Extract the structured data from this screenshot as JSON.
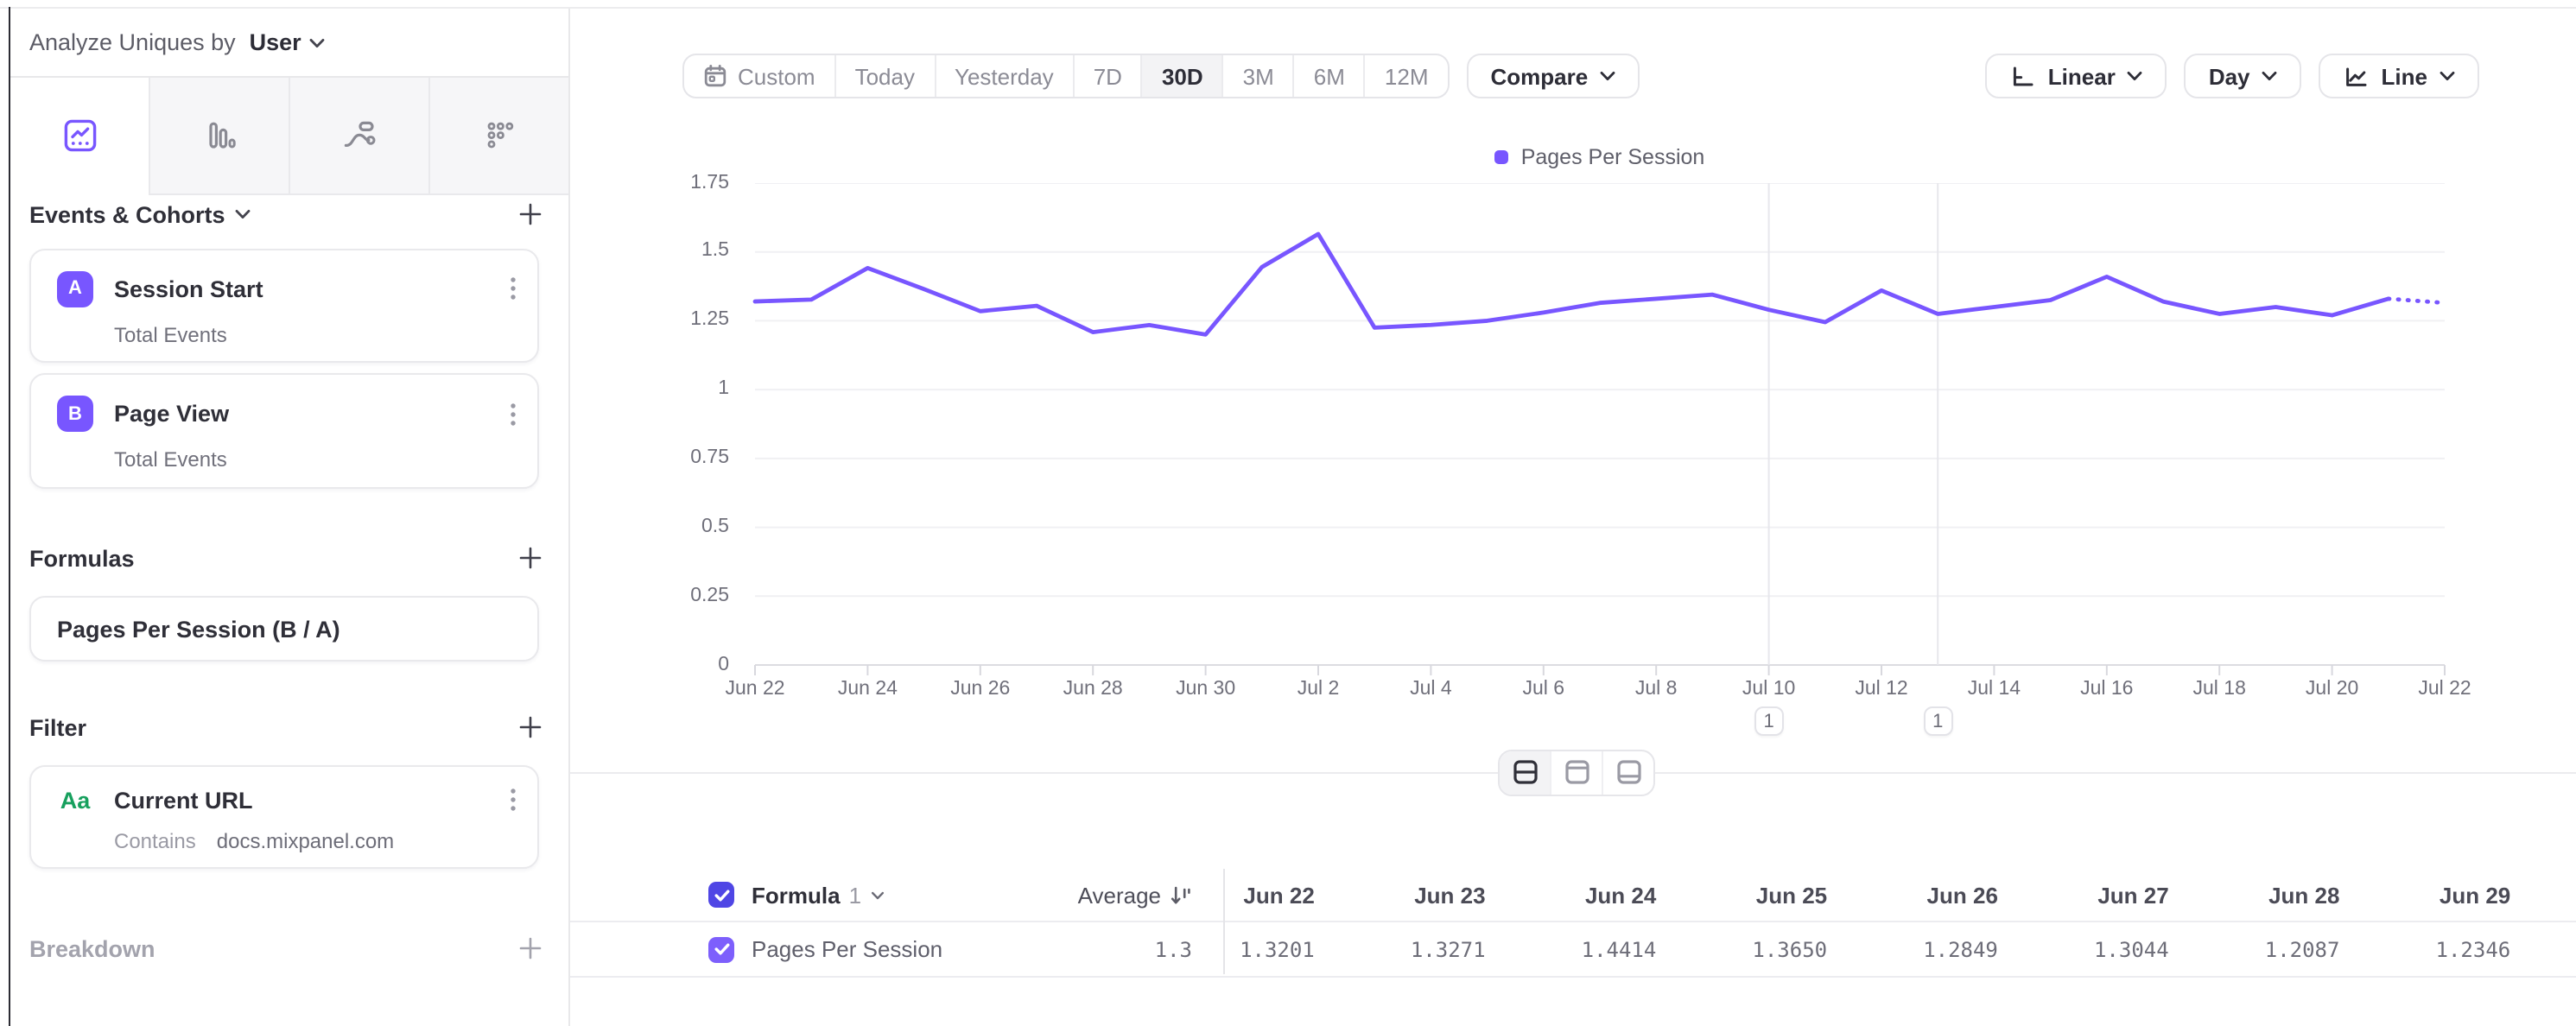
{
  "sidebar": {
    "analyze_prefix": "Analyze Uniques by",
    "analyze_value": "User",
    "tabs": [
      "insights",
      "bar",
      "flows",
      "retention"
    ],
    "events_section": {
      "title": "Events & Cohorts"
    },
    "events": [
      {
        "badge": "A",
        "title": "Session Start",
        "subtitle": "Total Events"
      },
      {
        "badge": "B",
        "title": "Page View",
        "subtitle": "Total Events"
      }
    ],
    "formulas_section": {
      "title": "Formulas"
    },
    "formulas": [
      {
        "title": "Pages Per Session (B / A)"
      }
    ],
    "filter_section": {
      "title": "Filter"
    },
    "filters": [
      {
        "badge": "Aa",
        "title": "Current URL",
        "operator": "Contains",
        "value": "docs.mixpanel.com"
      }
    ],
    "breakdown_section": {
      "title": "Breakdown"
    }
  },
  "toolbar": {
    "date_ranges": [
      "Custom",
      "Today",
      "Yesterday",
      "7D",
      "30D",
      "3M",
      "6M",
      "12M"
    ],
    "active_range": "30D",
    "compare_label": "Compare",
    "scale_label": "Linear",
    "granularity_label": "Day",
    "chart_type_label": "Line"
  },
  "chart_data": {
    "type": "line",
    "title": "",
    "legend": "Pages Per Session",
    "legend_position": "top-center",
    "grid": true,
    "ylim": [
      0,
      1.75
    ],
    "yticks": [
      0,
      0.25,
      0.5,
      0.75,
      1,
      1.25,
      1.5,
      1.75
    ],
    "x": [
      "Jun 22",
      "Jun 23",
      "Jun 24",
      "Jun 25",
      "Jun 26",
      "Jun 27",
      "Jun 28",
      "Jun 29",
      "Jun 30",
      "Jul 1",
      "Jul 2",
      "Jul 3",
      "Jul 4",
      "Jul 5",
      "Jul 6",
      "Jul 7",
      "Jul 8",
      "Jul 9",
      "Jul 10",
      "Jul 11",
      "Jul 12",
      "Jul 13",
      "Jul 14",
      "Jul 15",
      "Jul 16",
      "Jul 17",
      "Jul 18",
      "Jul 19",
      "Jul 20",
      "Jul 21",
      "Jul 22"
    ],
    "xtick_labels": [
      "Jun 22",
      "Jun 24",
      "Jun 26",
      "Jun 28",
      "Jun 30",
      "Jul 2",
      "Jul 4",
      "Jul 6",
      "Jul 8",
      "Jul 10",
      "Jul 12",
      "Jul 14",
      "Jul 16",
      "Jul 18",
      "Jul 20",
      "Jul 22"
    ],
    "series": [
      {
        "name": "Pages Per Session",
        "values": [
          1.3201,
          1.3271,
          1.4414,
          1.365,
          1.2849,
          1.3044,
          1.2087,
          1.2346,
          1.2,
          1.445,
          1.565,
          1.225,
          1.235,
          1.25,
          1.28,
          1.315,
          1.33,
          1.345,
          1.29,
          1.245,
          1.36,
          1.275,
          1.3,
          1.325,
          1.41,
          1.32,
          1.275,
          1.3,
          1.27,
          1.33,
          1.315
        ],
        "incomplete_tail_points": 1
      }
    ]
  },
  "annotations": [
    {
      "label": "1",
      "date": "Jul 10",
      "day_index": 18
    },
    {
      "label": "1",
      "date": "Jul 13",
      "day_index": 21
    }
  ],
  "table": {
    "formula_label": "Formula",
    "formula_number": "1",
    "average_label": "Average",
    "columns": [
      "Jun 22",
      "Jun 23",
      "Jun 24",
      "Jun 25",
      "Jun 26",
      "Jun 27",
      "Jun 28",
      "Jun 29"
    ],
    "rows": [
      {
        "label": "Pages Per Session",
        "average": "1.3",
        "values": [
          "1.3201",
          "1.3271",
          "1.4414",
          "1.3650",
          "1.2849",
          "1.3044",
          "1.2087",
          "1.2346"
        ]
      }
    ]
  },
  "colors": {
    "purple": "#7856FF",
    "badge": "#7856FF",
    "grid": "#F0F0F3",
    "baseline": "#DCDCE1",
    "tick": "#D8D8DE",
    "annotation_line": "#E7E7EC",
    "header_checkbox": "#4F46E5",
    "row_checkbox": "#7D5FFC",
    "filter_badge_green": "#17A05E"
  }
}
